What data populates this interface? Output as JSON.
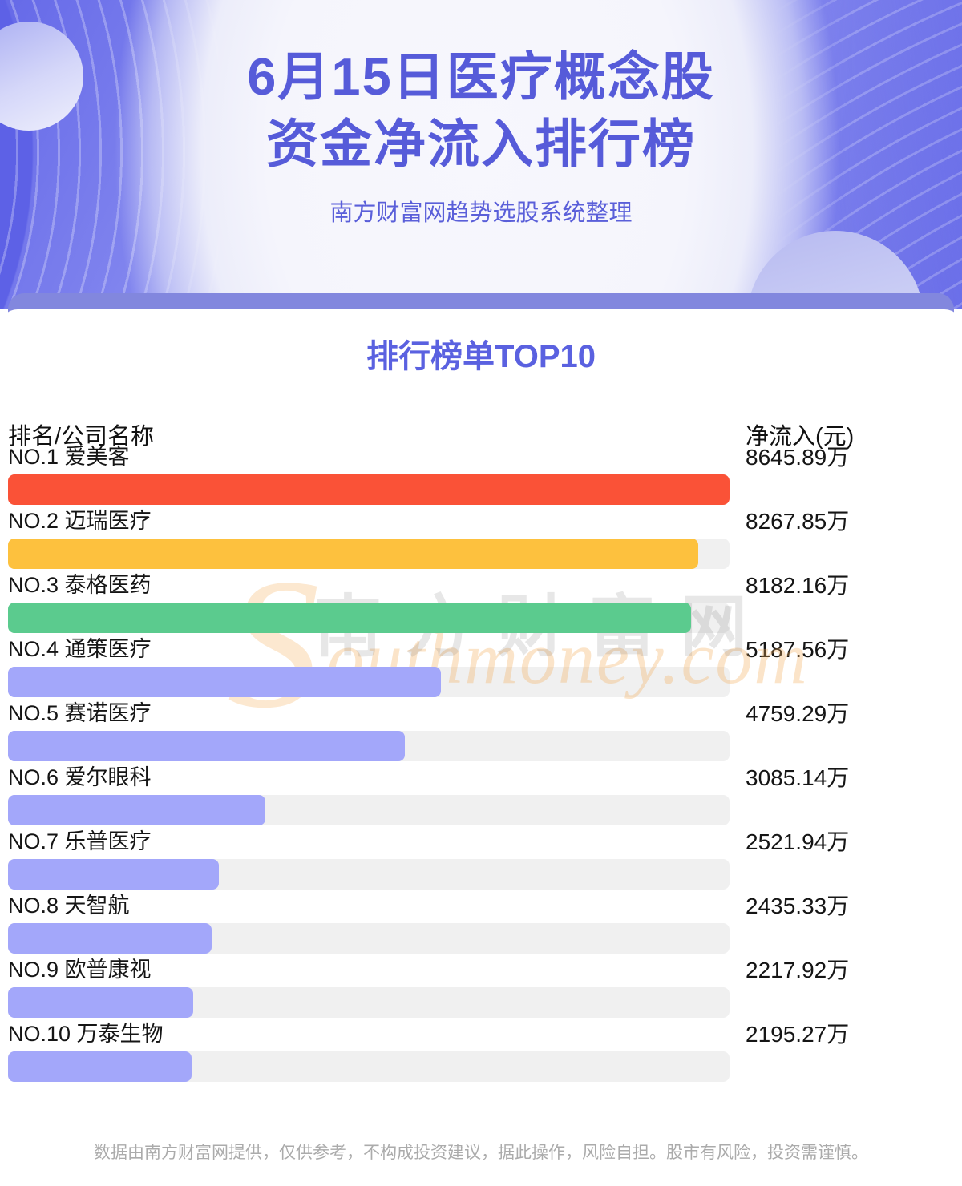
{
  "header": {
    "title_line1": "6月15日医疗概念股",
    "title_line2": "资金净流入排行榜",
    "subtitle": "南方财富网趋势选股系统整理"
  },
  "section": {
    "title": "排行榜单TOP10"
  },
  "table": {
    "col_rank_label": "排名/公司名称",
    "col_value_label": "净流入(元)"
  },
  "chart_data": {
    "type": "bar",
    "orientation": "horizontal",
    "title": "排行榜单TOP10",
    "categories": [
      "NO.1 爱美客",
      "NO.2 迈瑞医疗",
      "NO.3 泰格医药",
      "NO.4 通策医疗",
      "NO.5 赛诺医疗",
      "NO.6 爱尔眼科",
      "NO.7 乐普医疗",
      "NO.8 天智航",
      "NO.9 欧普康视",
      "NO.10 万泰生物"
    ],
    "values": [
      8645.89,
      8267.85,
      8182.16,
      5187.56,
      4759.29,
      3085.14,
      2521.94,
      2435.33,
      2217.92,
      2195.27
    ],
    "value_labels": [
      "8645.89万",
      "8267.85万",
      "8182.16万",
      "5187.56万",
      "4759.29万",
      "3085.14万",
      "2521.94万",
      "2435.33万",
      "2217.92万",
      "2195.27万"
    ],
    "unit": "万",
    "max_value": 8645.89,
    "xlim": [
      0,
      8645.89
    ],
    "grid": false,
    "legend": false,
    "bar_colors": [
      "#fa5237",
      "#fdc13e",
      "#5bcb8e",
      "#a3a7fa",
      "#a3a7fa",
      "#a3a7fa",
      "#a3a7fa",
      "#a3a7fa",
      "#a3a7fa",
      "#a3a7fa"
    ],
    "track_color": "#f0f0f0"
  },
  "watermark": {
    "initial": "S",
    "en": "outhmoney.com",
    "cn": "南方财富网"
  },
  "footer": {
    "disclaimer": "数据由南方财富网提供，仅供参考，不构成投资建议，据此操作，风险自担。股市有风险，投资需谨慎。"
  },
  "colors": {
    "hero_background": "#8185ee",
    "title_text": "#565bd9",
    "section_title_text": "#5a61e0",
    "band": "#8287de",
    "label_text": "#151515",
    "footer_text": "#ababab"
  }
}
